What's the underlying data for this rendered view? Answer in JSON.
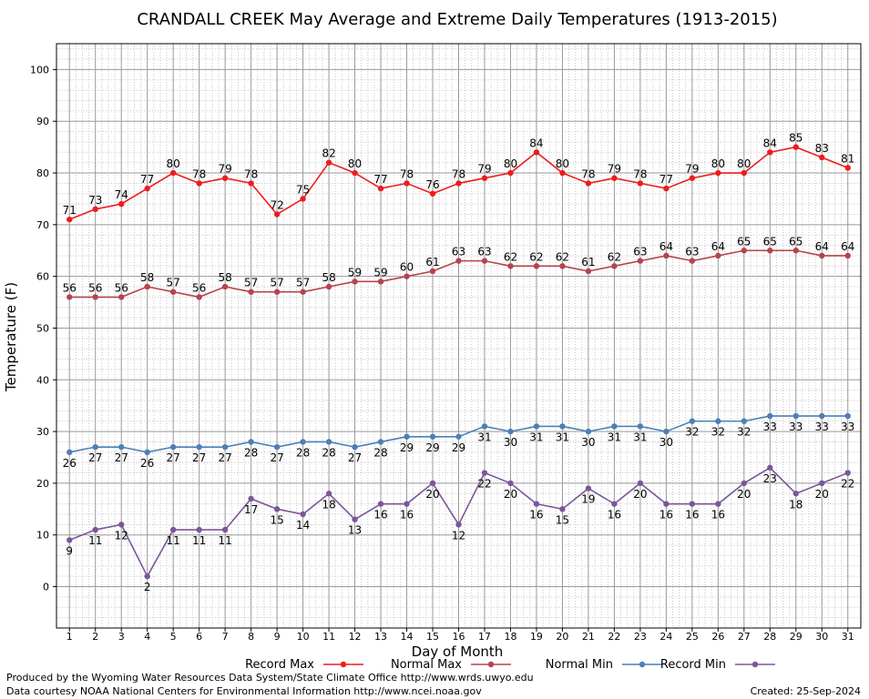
{
  "chart_data": {
    "type": "line",
    "title": "CRANDALL CREEK May Average and Extreme Daily Temperatures (1913-2015)",
    "xlabel": "Day of Month",
    "ylabel": "Temperature (F)",
    "xlim": [
      0.5,
      31.5
    ],
    "ylim": [
      -8,
      105
    ],
    "yticks": [
      0,
      10,
      20,
      30,
      40,
      50,
      60,
      70,
      80,
      90,
      100
    ],
    "x": [
      1,
      2,
      3,
      4,
      5,
      6,
      7,
      8,
      9,
      10,
      11,
      12,
      13,
      14,
      15,
      16,
      17,
      18,
      19,
      20,
      21,
      22,
      23,
      24,
      25,
      26,
      27,
      28,
      29,
      30,
      31
    ],
    "grid": true,
    "legend": "bottom",
    "series": [
      {
        "name": "Record Max",
        "color": "#ee1c1c",
        "label_pos": "above",
        "values": [
          71,
          73,
          74,
          77,
          80,
          78,
          79,
          78,
          72,
          75,
          82,
          80,
          77,
          78,
          76,
          78,
          79,
          80,
          84,
          80,
          78,
          79,
          78,
          77,
          79,
          80,
          80,
          84,
          85,
          83,
          81
        ]
      },
      {
        "name": "Normal Max",
        "color": "#b5444a",
        "label_pos": "above",
        "values": [
          56,
          56,
          56,
          58,
          57,
          56,
          58,
          57,
          57,
          57,
          58,
          59,
          59,
          60,
          61,
          63,
          63,
          62,
          62,
          62,
          61,
          62,
          63,
          64,
          63,
          64,
          65,
          65,
          65,
          64,
          64
        ]
      },
      {
        "name": "Normal Min",
        "color": "#4c7fb8",
        "label_pos": "below",
        "values": [
          26,
          27,
          27,
          26,
          27,
          27,
          27,
          28,
          27,
          28,
          28,
          27,
          28,
          29,
          29,
          29,
          31,
          30,
          31,
          31,
          30,
          31,
          31,
          30,
          32,
          32,
          32,
          33,
          33,
          33,
          33
        ]
      },
      {
        "name": "Record Min",
        "color": "#7b5699",
        "label_pos": "below",
        "values": [
          9,
          11,
          12,
          2,
          11,
          11,
          11,
          17,
          15,
          14,
          18,
          13,
          16,
          16,
          20,
          12,
          22,
          20,
          16,
          15,
          19,
          16,
          20,
          16,
          16,
          16,
          20,
          23,
          18,
          20,
          22
        ]
      }
    ]
  },
  "footer": {
    "line1": "Produced by the Wyoming Water Resources Data System/State Climate Office http://www.wrds.uwyo.edu",
    "line2": "Data courtesy NOAA National Centers for Environmental Information http://www.ncei.noaa.gov",
    "created": "Created:  25-Sep-2024"
  }
}
